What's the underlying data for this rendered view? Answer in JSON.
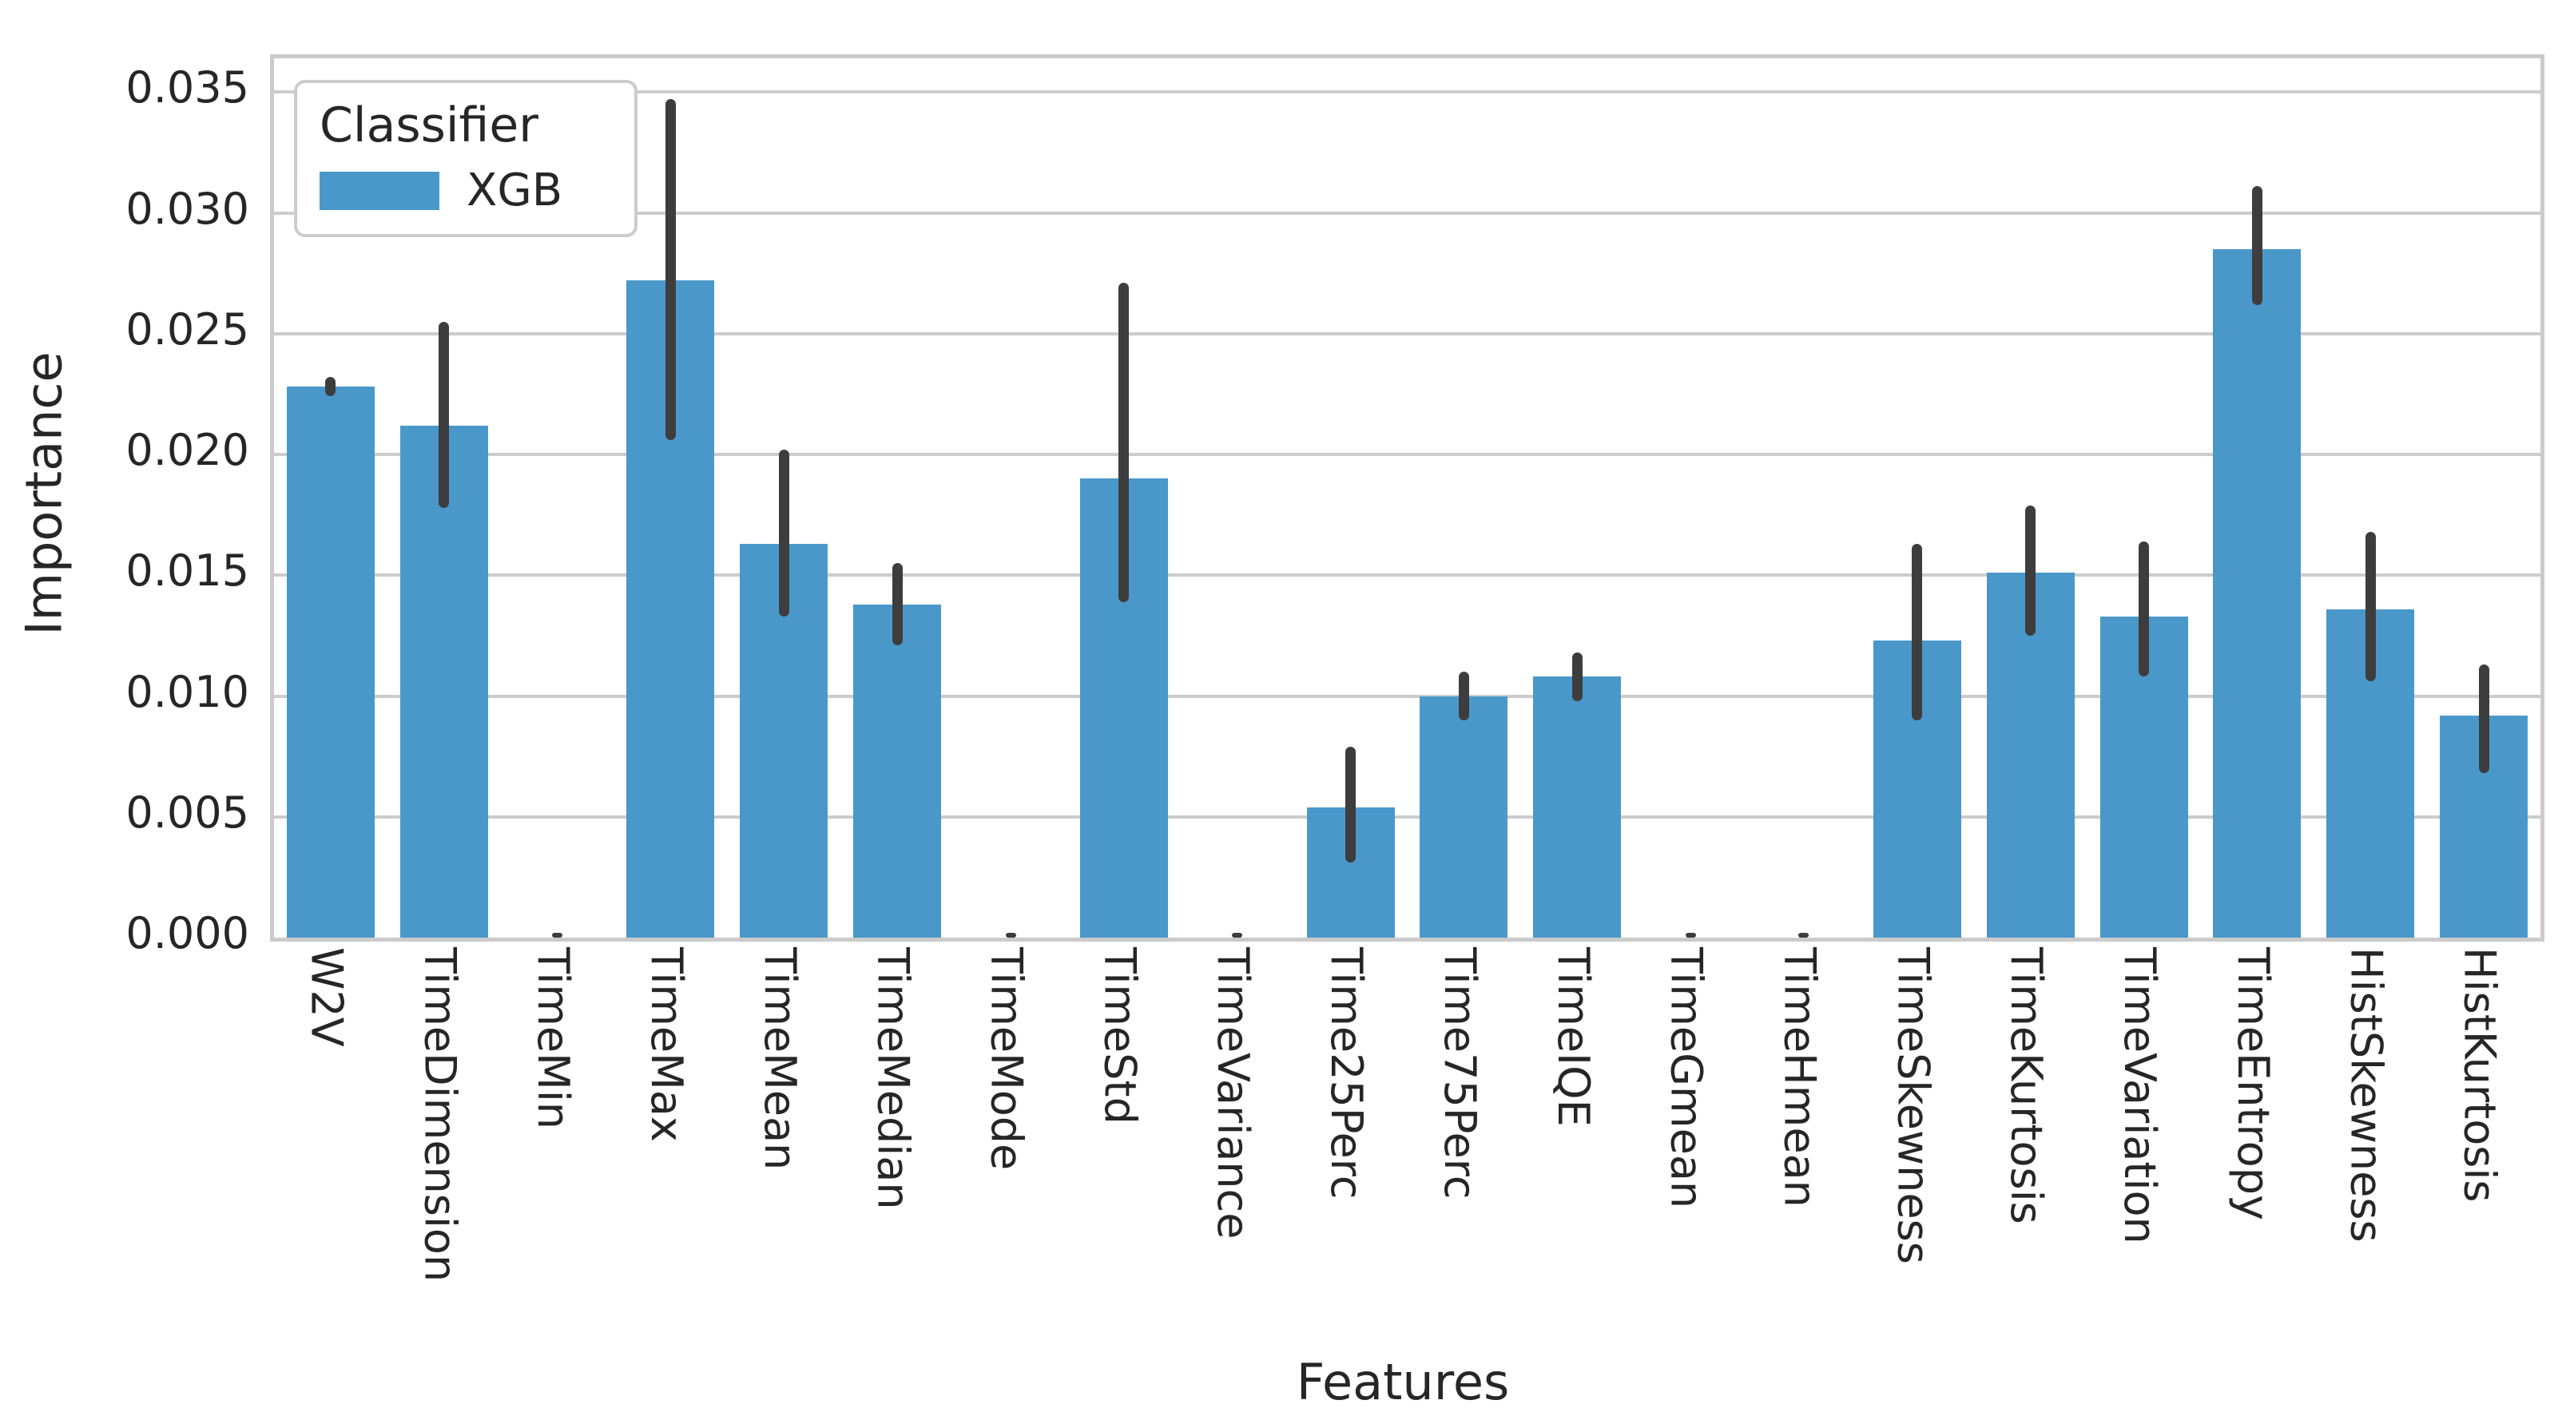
{
  "axes": {
    "ylabel": "Importance",
    "xlabel": "Features"
  },
  "legend": {
    "title": "Classifier",
    "items": [
      {
        "label": "XGB",
        "swatch_color": "#4A98C9"
      }
    ]
  },
  "colors": {
    "bar": "#4A98C9",
    "error_bar": "#3D3D3D",
    "grid": "#CCCCCC",
    "spine": "#CBCBCB",
    "text": "#262626",
    "background": "#FFFFFF"
  },
  "chart_data": {
    "type": "bar",
    "title": "",
    "xlabel": "Features",
    "ylabel": "Importance",
    "legend_position": "upper-left",
    "grid": true,
    "ylim": [
      0,
      0.0364
    ],
    "yticks": [
      {
        "label": "0.000",
        "value": 0.0
      },
      {
        "label": "0.005",
        "value": 0.005
      },
      {
        "label": "0.010",
        "value": 0.01
      },
      {
        "label": "0.015",
        "value": 0.015
      },
      {
        "label": "0.020",
        "value": 0.02
      },
      {
        "label": "0.025",
        "value": 0.025
      },
      {
        "label": "0.030",
        "value": 0.03
      },
      {
        "label": "0.035",
        "value": 0.035
      }
    ],
    "categories": [
      "W2V",
      "TimeDimension",
      "TimeMin",
      "TimeMax",
      "TimeMean",
      "TimeMedian",
      "TimeMode",
      "TimeStd",
      "TimeVariance",
      "Time25Perc",
      "Time75Perc",
      "TimeIQE",
      "TimeGmean",
      "TimeHmean",
      "TimeSkewness",
      "TimeKurtosis",
      "TimeVariation",
      "TimeEntropy",
      "HistSkewness",
      "HistKurtosis"
    ],
    "series": [
      {
        "name": "XGB",
        "values": [
          0.0228,
          0.0212,
          0.0,
          0.0272,
          0.0163,
          0.0138,
          0.0,
          0.019,
          0.0,
          0.0054,
          0.01,
          0.0108,
          0.0,
          0.0,
          0.0123,
          0.0151,
          0.0133,
          0.0285,
          0.0136,
          0.0092
        ],
        "err_low": [
          0.0224,
          0.0178,
          0.0,
          0.0206,
          0.0133,
          0.0121,
          0.0,
          0.0139,
          0.0,
          0.0031,
          0.009,
          0.0098,
          0.0,
          0.0,
          0.009,
          0.0125,
          0.0108,
          0.0262,
          0.0106,
          0.0068
        ],
        "err_high": [
          0.0232,
          0.0255,
          0.0002,
          0.0347,
          0.0202,
          0.0155,
          0.0002,
          0.0271,
          0.0002,
          0.0079,
          0.011,
          0.0118,
          0.0002,
          0.0002,
          0.0163,
          0.0179,
          0.0164,
          0.0311,
          0.0168,
          0.0113
        ]
      }
    ]
  }
}
